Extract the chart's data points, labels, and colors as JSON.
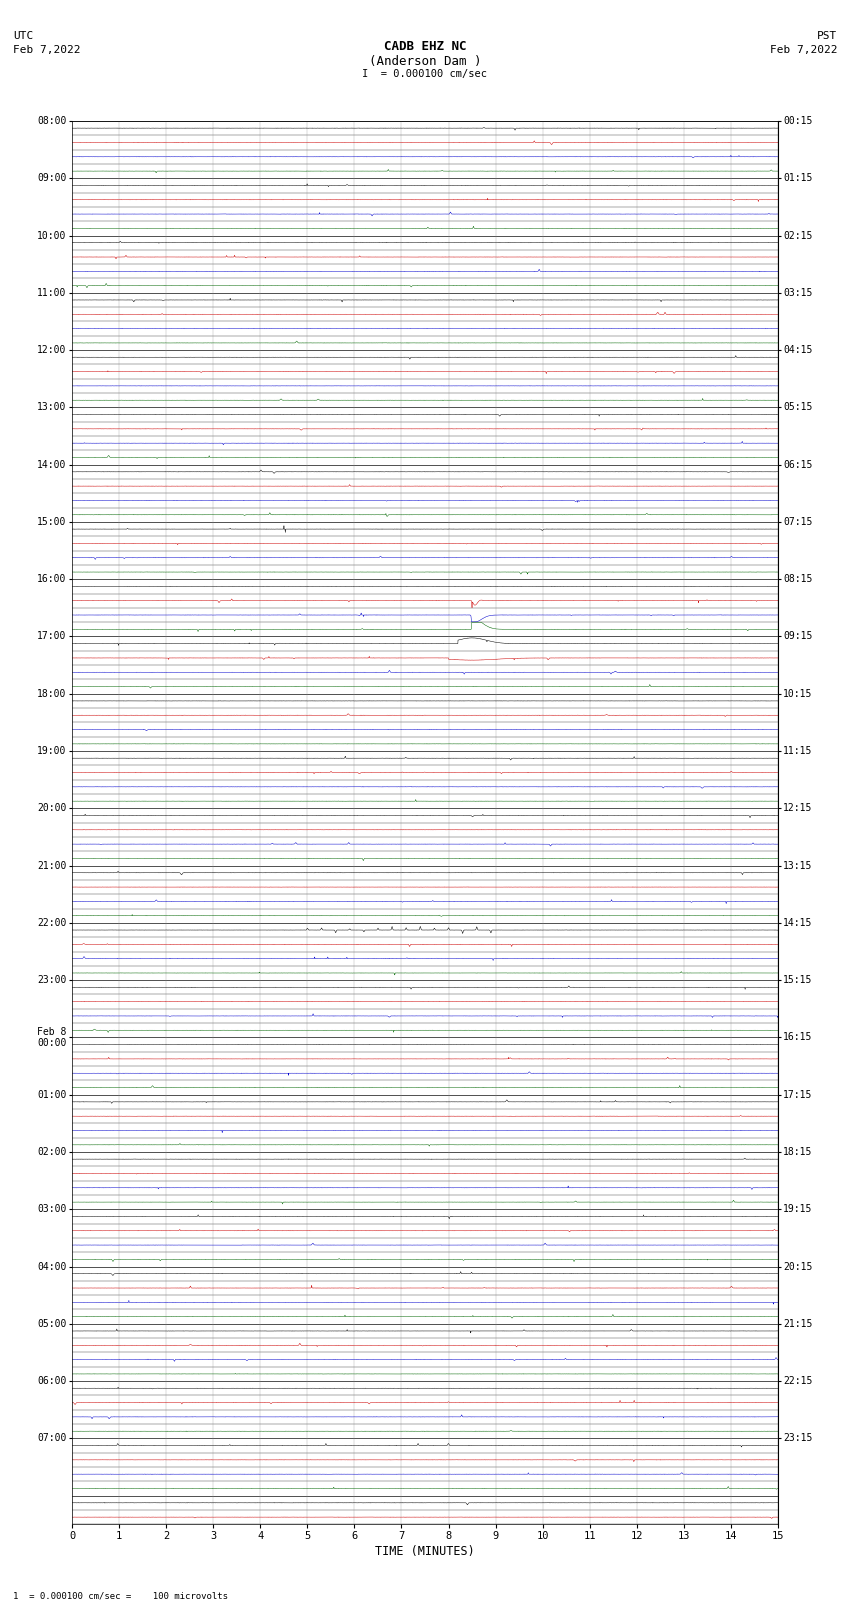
{
  "title_line1": "CADB EHZ NC",
  "title_line2": "(Anderson Dam )",
  "scale_label": "I  = 0.000100 cm/sec",
  "footer_label": "1  = 0.000100 cm/sec =    100 microvolts",
  "utc_label1": "UTC",
  "utc_label2": "Feb 7,2022",
  "pst_label1": "PST",
  "pst_label2": "Feb 7,2022",
  "xlabel": "TIME (MINUTES)",
  "left_times": [
    "08:00",
    "",
    "",
    "",
    "09:00",
    "",
    "",
    "",
    "10:00",
    "",
    "",
    "",
    "11:00",
    "",
    "",
    "",
    "12:00",
    "",
    "",
    "",
    "13:00",
    "",
    "",
    "",
    "14:00",
    "",
    "",
    "",
    "15:00",
    "",
    "",
    "",
    "16:00",
    "",
    "",
    "",
    "17:00",
    "",
    "",
    "",
    "18:00",
    "",
    "",
    "",
    "19:00",
    "",
    "",
    "",
    "20:00",
    "",
    "",
    "",
    "21:00",
    "",
    "",
    "",
    "22:00",
    "",
    "",
    "",
    "23:00",
    "",
    "",
    "",
    "Feb 8\n00:00",
    "",
    "",
    "",
    "01:00",
    "",
    "",
    "",
    "02:00",
    "",
    "",
    "",
    "03:00",
    "",
    "",
    "",
    "04:00",
    "",
    "",
    "",
    "05:00",
    "",
    "",
    "",
    "06:00",
    "",
    "",
    "",
    "07:00",
    ""
  ],
  "right_times": [
    "00:15",
    "",
    "",
    "",
    "01:15",
    "",
    "",
    "",
    "02:15",
    "",
    "",
    "",
    "03:15",
    "",
    "",
    "",
    "04:15",
    "",
    "",
    "",
    "05:15",
    "",
    "",
    "",
    "06:15",
    "",
    "",
    "",
    "07:15",
    "",
    "",
    "",
    "08:15",
    "",
    "",
    "",
    "09:15",
    "",
    "",
    "",
    "10:15",
    "",
    "",
    "",
    "11:15",
    "",
    "",
    "",
    "12:15",
    "",
    "",
    "",
    "13:15",
    "",
    "",
    "",
    "14:15",
    "",
    "",
    "",
    "15:15",
    "",
    "",
    "",
    "16:15",
    "",
    "",
    "",
    "17:15",
    "",
    "",
    "",
    "18:15",
    "",
    "",
    "",
    "19:15",
    "",
    "",
    "",
    "20:15",
    "",
    "",
    "",
    "21:15",
    "",
    "",
    "",
    "22:15",
    "",
    "",
    "",
    "23:15",
    ""
  ],
  "n_rows": 98,
  "x_min": 0,
  "x_max": 15,
  "background_color": "#ffffff",
  "grid_color": "#aaaaaa",
  "seed": 12345,
  "noise_amplitude": 0.025,
  "row_colors": [
    "#000000",
    "#cc0000",
    "#0000cc",
    "#006600"
  ]
}
